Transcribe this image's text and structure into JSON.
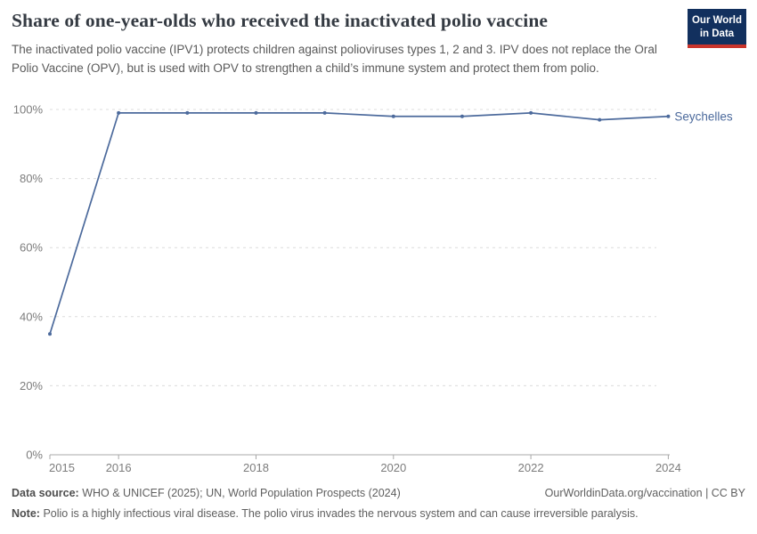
{
  "logo": {
    "line1": "Our World",
    "line2": "in Data",
    "bg_color": "#12305e",
    "accent_color": "#c9342b"
  },
  "chart_data": {
    "type": "line",
    "title": "Share of one-year-olds who received the inactivated polio vaccine",
    "subtitle": "The inactivated polio vaccine (IPV1) protects children against polioviruses types 1, 2 and 3. IPV does not replace the Oral Polio Vaccine (OPV), but is used with OPV to strengthen a child’s immune system and protect them from polio.",
    "x": [
      2015,
      2016,
      2017,
      2018,
      2019,
      2020,
      2021,
      2022,
      2023,
      2024
    ],
    "series": [
      {
        "name": "Seychelles",
        "color": "#4c6a9c",
        "values": [
          35,
          99,
          99,
          99,
          99,
          98,
          98,
          99,
          97,
          98
        ]
      }
    ],
    "x_ticks": [
      {
        "v": 2015,
        "label": "2015"
      },
      {
        "v": 2016,
        "label": "2016"
      },
      {
        "v": 2018,
        "label": "2018"
      },
      {
        "v": 2020,
        "label": "2020"
      },
      {
        "v": 2022,
        "label": "2022"
      },
      {
        "v": 2024,
        "label": "2024"
      }
    ],
    "y_ticks": [
      {
        "v": 0,
        "label": "0%"
      },
      {
        "v": 20,
        "label": "20%"
      },
      {
        "v": 40,
        "label": "40%"
      },
      {
        "v": 60,
        "label": "60%"
      },
      {
        "v": 80,
        "label": "80%"
      },
      {
        "v": 100,
        "label": "100%"
      }
    ],
    "xlim": [
      2015,
      2024
    ],
    "ylim": [
      0,
      100
    ],
    "grid": true,
    "grid_color": "#dcdcdc",
    "axis_color": "#a8a8a8",
    "tick_label_color": "#7c7c7c",
    "legend_position": "end-of-line-label"
  },
  "footer": {
    "data_source_label": "Data source:",
    "data_source_text": "WHO & UNICEF (2025); UN, World Population Prospects (2024)",
    "link_text": "OurWorldinData.org/vaccination | CC BY",
    "note_label": "Note:",
    "note_text": "Polio is a highly infectious viral disease. The polio virus invades the nervous system and can cause irreversible paralysis."
  }
}
